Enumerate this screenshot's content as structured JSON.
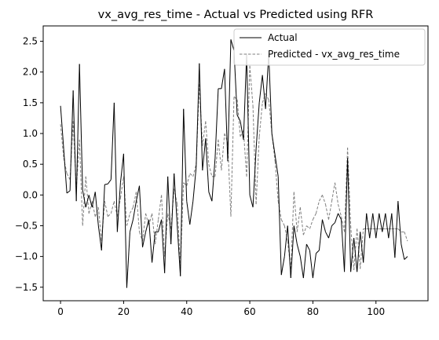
{
  "chart_data": {
    "type": "line",
    "title": "vx_avg_res_time - Actual vs Predicted using RFR",
    "xlabel": "",
    "ylabel": "",
    "xlim": [
      -5.5,
      116.5
    ],
    "ylim": [
      -1.72,
      2.75
    ],
    "x_ticks": [
      0,
      20,
      40,
      60,
      80,
      100
    ],
    "y_ticks": [
      -1.5,
      -1.0,
      -0.5,
      0.0,
      0.5,
      1.0,
      1.5,
      2.0,
      2.5
    ],
    "y_tick_labels": [
      "−1.5",
      "−1.0",
      "−0.5",
      "0.0",
      "0.5",
      "1.0",
      "1.5",
      "2.0",
      "2.5"
    ],
    "grid": false,
    "legend": {
      "position": "top-right"
    },
    "series": [
      {
        "name": "Actual",
        "color": "#000000",
        "style": "solid",
        "values": [
          1.45,
          0.75,
          0.03,
          0.07,
          1.7,
          -0.1,
          2.13,
          0.08,
          -0.2,
          0.0,
          -0.2,
          0.05,
          -0.5,
          -0.9,
          0.17,
          0.18,
          0.25,
          1.5,
          -0.6,
          0.2,
          0.67,
          -1.51,
          -0.6,
          -0.4,
          -0.1,
          0.15,
          -0.85,
          -0.6,
          -0.4,
          -1.1,
          -0.6,
          -0.6,
          -0.4,
          -1.27,
          0.3,
          -0.8,
          0.35,
          -0.5,
          -1.32,
          1.4,
          -0.1,
          -0.48,
          -0.1,
          0.45,
          2.14,
          0.4,
          0.92,
          0.05,
          -0.1,
          0.6,
          1.73,
          1.73,
          2.05,
          0.55,
          2.53,
          2.35,
          1.3,
          1.2,
          0.9,
          2.3,
          0.0,
          -0.2,
          0.75,
          1.5,
          1.95,
          1.4,
          2.3,
          1.0,
          0.65,
          0.3,
          -1.3,
          -1.0,
          -0.5,
          -1.35,
          -0.5,
          -0.8,
          -1.0,
          -1.35,
          -0.8,
          -0.9,
          -1.35,
          -0.95,
          -0.9,
          -0.4,
          -0.6,
          -0.7,
          -0.5,
          -0.45,
          -0.3,
          -0.4,
          -1.25,
          0.6,
          -1.25,
          -0.7,
          -1.25,
          -0.6,
          -1.1,
          -0.3,
          -0.7,
          -0.3,
          -0.7,
          -0.3,
          -0.6,
          -0.3,
          -0.7,
          -0.3,
          -1.02,
          -0.1,
          -0.8,
          -1.05,
          -1.0
        ]
      },
      {
        "name": "Predicted - vx_avg_res_time",
        "color": "#7f7f7f",
        "style": "dashed",
        "values": [
          1.15,
          0.6,
          0.35,
          0.25,
          1.2,
          0.1,
          0.9,
          -0.5,
          0.3,
          -0.3,
          -0.1,
          -0.35,
          -0.2,
          -0.75,
          -0.1,
          -0.35,
          -0.3,
          -0.1,
          -0.35,
          -0.05,
          0.3,
          -0.5,
          -0.3,
          -0.2,
          0.05,
          -0.6,
          -0.75,
          -0.3,
          -0.5,
          -0.3,
          -0.8,
          -0.4,
          0.0,
          -1.0,
          -0.3,
          -0.55,
          0.1,
          -0.15,
          -1.15,
          0.2,
          0.15,
          0.35,
          0.3,
          0.5,
          1.8,
          0.8,
          1.2,
          0.5,
          0.3,
          0.3,
          0.9,
          0.4,
          1.0,
          0.85,
          -0.35,
          1.6,
          1.55,
          0.95,
          1.05,
          0.3,
          2.1,
          1.45,
          -0.15,
          0.95,
          1.5,
          1.65,
          1.55,
          1.0,
          0.55,
          -0.1,
          -0.4,
          -0.5,
          -0.75,
          -1.2,
          0.05,
          -0.6,
          -0.2,
          -0.65,
          -0.5,
          -0.55,
          -0.4,
          -0.3,
          -0.1,
          0.0,
          -0.15,
          -0.4,
          -0.1,
          0.2,
          -0.15,
          -0.35,
          -0.6,
          0.77,
          -0.5,
          -1.22,
          -0.55,
          -1.2,
          -0.55,
          -0.55,
          -0.55,
          -0.55,
          -0.55,
          -0.55,
          -0.55,
          -0.55,
          -0.55,
          -0.55,
          -0.55,
          -0.55,
          -0.6,
          -0.6,
          -0.75
        ]
      }
    ]
  }
}
